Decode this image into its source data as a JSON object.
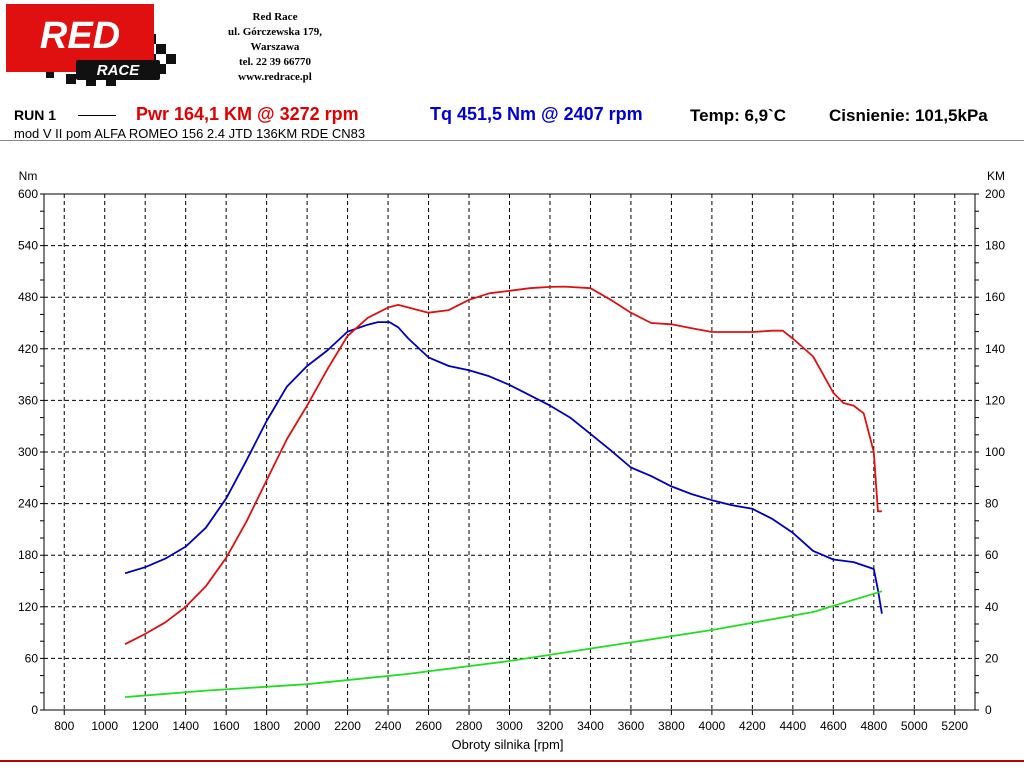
{
  "header": {
    "company_lines": [
      "Red Race",
      "ul. Górczewska 179,",
      "Warszawa",
      "tel. 22 39 66770",
      "www.redrace.pl"
    ],
    "logo_text_main": "RED",
    "logo_text_sub": "RACE"
  },
  "run": {
    "name": "RUN 1",
    "power_summary": "Pwr  164,1 KM @ 3272 rpm",
    "torque_summary": "Tq 451,5 Nm @ 2407 rpm",
    "temp": "Temp: 6,9`C",
    "pressure": "Cisnienie: 101,5kPa",
    "description": "mod V  II pom ALFA ROMEO 156 2.4 JTD 136KM RDE CN83"
  },
  "colors": {
    "power": "#dd1111",
    "torque": "#0000bb",
    "loss": "#22dd22",
    "brand_red": "#e01010"
  },
  "chart_data": {
    "type": "line",
    "xlabel": "Obroty silnika [rpm]",
    "ylabel_left": "Nm",
    "ylabel_right": "KM",
    "xlim": [
      700,
      5300
    ],
    "ylim_left": [
      0,
      600
    ],
    "ylim_right": [
      0,
      200
    ],
    "x_ticks": [
      800,
      1000,
      1200,
      1400,
      1600,
      1800,
      2000,
      2200,
      2400,
      2600,
      2800,
      3000,
      3200,
      3400,
      3600,
      3800,
      4000,
      4200,
      4400,
      4600,
      4800,
      5000,
      5200
    ],
    "y_ticks_left": [
      0,
      60,
      120,
      180,
      240,
      300,
      360,
      420,
      480,
      540,
      600
    ],
    "y_ticks_right": [
      0,
      20,
      40,
      60,
      80,
      100,
      120,
      140,
      160,
      180,
      200
    ],
    "grid": true,
    "series": [
      {
        "name": "Tq",
        "axis": "left",
        "color": "#0000bb",
        "x": [
          1100,
          1200,
          1300,
          1400,
          1500,
          1600,
          1700,
          1800,
          1900,
          2000,
          2100,
          2200,
          2300,
          2350,
          2407,
          2450,
          2500,
          2600,
          2700,
          2800,
          2900,
          3000,
          3100,
          3200,
          3300,
          3400,
          3500,
          3600,
          3700,
          3800,
          3900,
          4000,
          4100,
          4200,
          4300,
          4400,
          4500,
          4600,
          4700,
          4800,
          4820,
          4840
        ],
        "y": [
          159,
          166,
          176,
          190,
          212,
          246,
          290,
          336,
          376,
          400,
          418,
          440,
          448,
          451,
          451,
          445,
          432,
          410,
          400,
          395,
          388,
          378,
          366,
          354,
          340,
          321,
          302,
          282,
          272,
          260,
          251,
          244,
          238,
          234,
          222,
          206,
          185,
          175,
          172,
          164,
          140,
          112
        ]
      },
      {
        "name": "Pwr",
        "axis": "right",
        "color": "#dd1111",
        "x": [
          1100,
          1200,
          1300,
          1400,
          1500,
          1600,
          1700,
          1800,
          1900,
          2000,
          2100,
          2200,
          2300,
          2400,
          2450,
          2500,
          2600,
          2700,
          2800,
          2900,
          3000,
          3100,
          3200,
          3272,
          3400,
          3500,
          3600,
          3700,
          3800,
          3900,
          4000,
          4100,
          4200,
          4300,
          4350,
          4400,
          4500,
          4550,
          4600,
          4650,
          4700,
          4750,
          4800,
          4820,
          4840
        ],
        "y": [
          25.5,
          29.5,
          34,
          40,
          48,
          59,
          73,
          89,
          105,
          118,
          132,
          145,
          152,
          156,
          157,
          156,
          154,
          155,
          159,
          161.5,
          162.5,
          163.5,
          164,
          164.1,
          163.5,
          159,
          154,
          150,
          149.5,
          148,
          146.5,
          146.5,
          146.5,
          147,
          147,
          144,
          137,
          130,
          123,
          119,
          118,
          115,
          100,
          77,
          77
        ]
      },
      {
        "name": "",
        "axis": "right",
        "color": "#22dd22",
        "x": [
          1100,
          1500,
          2000,
          2500,
          3000,
          3500,
          4000,
          4500,
          4840
        ],
        "y": [
          5,
          7.5,
          10,
          14,
          19,
          25,
          31,
          38,
          46
        ]
      }
    ]
  }
}
